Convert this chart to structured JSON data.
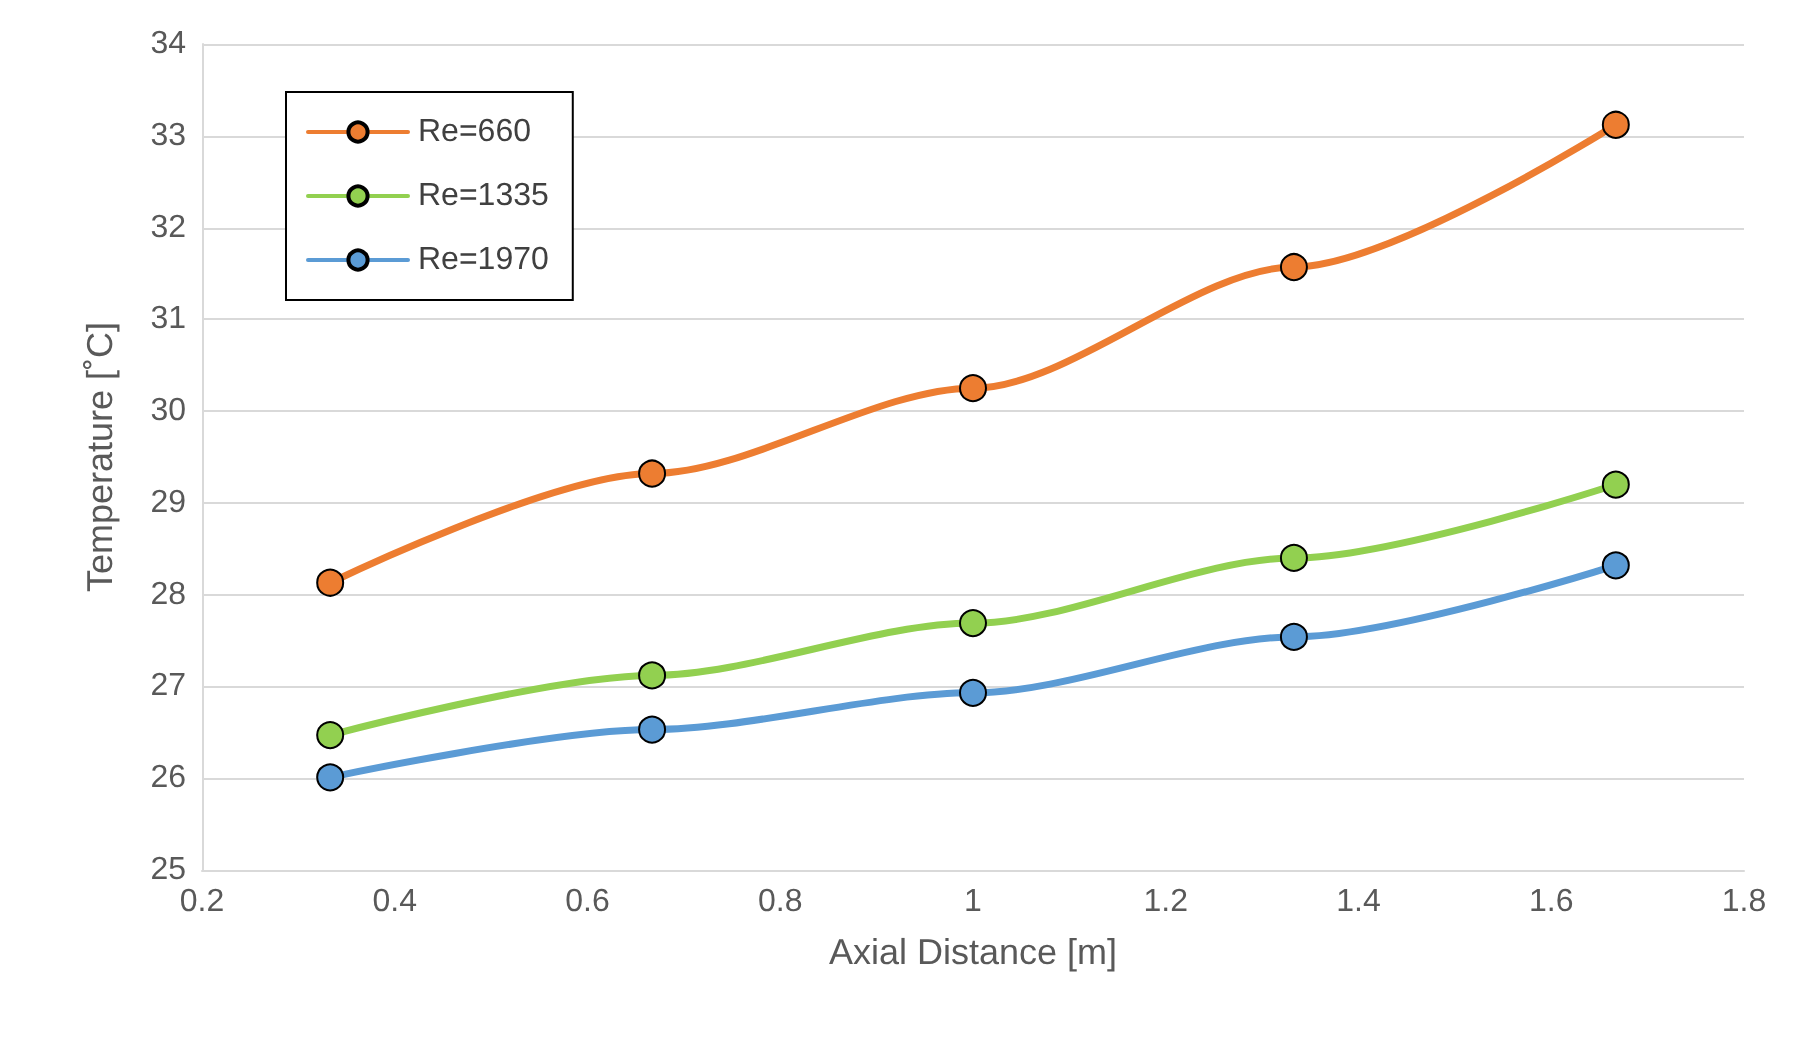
{
  "chart_data": {
    "type": "line",
    "xlabel": "Axial Distance [m]",
    "ylabel": "Temperature [˚C]",
    "x": [
      0.333,
      0.667,
      1.0,
      1.333,
      1.667
    ],
    "series": [
      {
        "name": "Re=660",
        "color": "#ed7d31",
        "values": [
          28.13,
          29.32,
          30.25,
          31.57,
          33.12
        ]
      },
      {
        "name": "Re=1335",
        "color": "#92d050",
        "values": [
          26.47,
          27.12,
          27.69,
          28.4,
          29.2
        ]
      },
      {
        "name": "Re=1970",
        "color": "#5b9bd5",
        "values": [
          26.01,
          26.53,
          26.93,
          27.54,
          28.32
        ]
      }
    ],
    "xlim": [
      0.2,
      1.8
    ],
    "xticks": [
      0.2,
      0.4,
      0.6,
      0.8,
      1,
      1.2,
      1.4,
      1.6,
      1.8
    ],
    "ylim": [
      25,
      34
    ],
    "yticks": [
      25,
      26,
      27,
      28,
      29,
      30,
      31,
      32,
      33,
      34
    ],
    "grid": "y",
    "legend": "top left",
    "marker": "circle",
    "line_style": "solid"
  }
}
